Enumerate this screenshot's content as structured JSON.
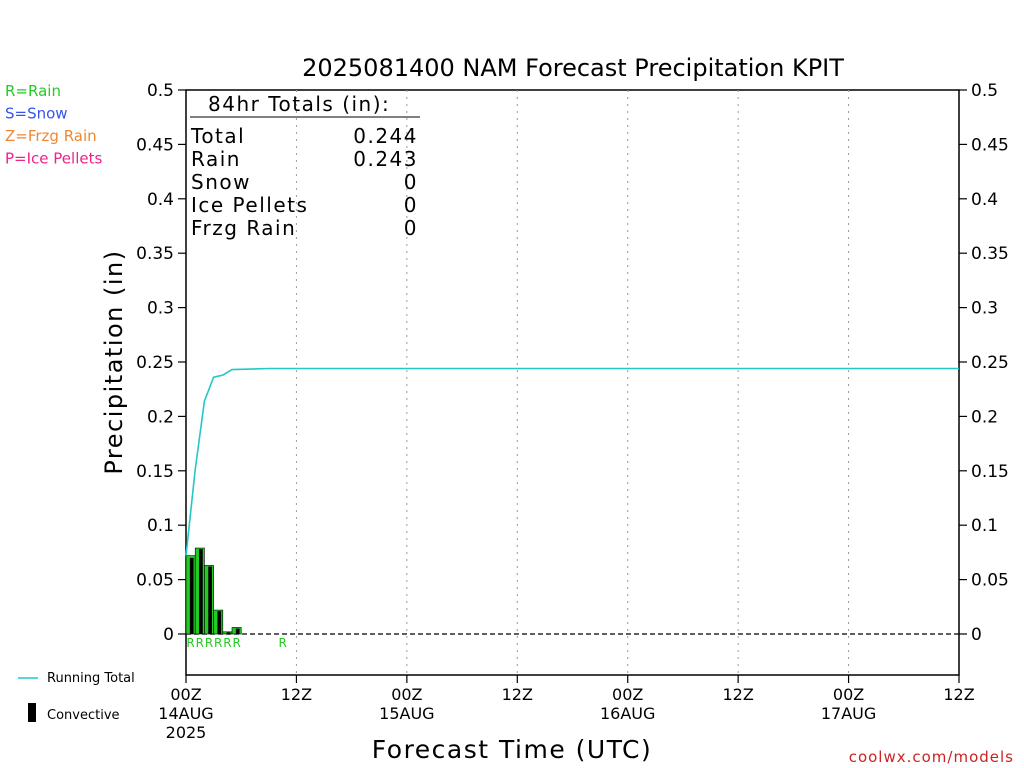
{
  "title": "2025081400 NAM Forecast Precipitation KPIT",
  "watermark": "coolwx.com/models",
  "ylabel": "Precipitation (in)",
  "xlabel": "Forecast Time (UTC)",
  "type_legend": [
    {
      "label": "R=Rain",
      "color": "#22cc22"
    },
    {
      "label": "S=Snow",
      "color": "#3355ee"
    },
    {
      "label": "Z=Frzg Rain",
      "color": "#ee8833"
    },
    {
      "label": "P=Ice Pellets",
      "color": "#ee2288"
    }
  ],
  "series_legend": {
    "running_total": "Running Total",
    "convective": "Convective"
  },
  "totals": {
    "header": "84hr Totals (in):",
    "rows": [
      {
        "label": "Total",
        "value": "0.244"
      },
      {
        "label": "Rain",
        "value": "0.243"
      },
      {
        "label": "Snow",
        "value": "0"
      },
      {
        "label": "Ice Pellets",
        "value": "0"
      },
      {
        "label": "Frzg Rain",
        "value": "0"
      }
    ]
  },
  "colors": {
    "running_total": "#22c8c8",
    "bar": "#22cc22",
    "convective": "#000000",
    "rain_marker": "#22cc22",
    "watermark": "#cc2222"
  },
  "chart_data": {
    "type": "bar",
    "xlim": [
      0,
      84
    ],
    "ylim": [
      0,
      0.5
    ],
    "yticks": [
      {
        "v": 0,
        "label": "0"
      },
      {
        "v": 0.05,
        "label": "0.05"
      },
      {
        "v": 0.1,
        "label": "0.1"
      },
      {
        "v": 0.15,
        "label": "0.15"
      },
      {
        "v": 0.2,
        "label": "0.2"
      },
      {
        "v": 0.25,
        "label": "0.25"
      },
      {
        "v": 0.3,
        "label": "0.3"
      },
      {
        "v": 0.35,
        "label": "0.35"
      },
      {
        "v": 0.4,
        "label": "0.4"
      },
      {
        "v": 0.45,
        "label": "0.45"
      },
      {
        "v": 0.5,
        "label": "0.5"
      }
    ],
    "xticks": [
      {
        "h": 0,
        "lines": [
          "00Z",
          "14AUG",
          "2025"
        ]
      },
      {
        "h": 12,
        "lines": [
          "12Z"
        ]
      },
      {
        "h": 24,
        "lines": [
          "00Z",
          "15AUG"
        ]
      },
      {
        "h": 36,
        "lines": [
          "12Z"
        ]
      },
      {
        "h": 48,
        "lines": [
          "00Z",
          "16AUG"
        ]
      },
      {
        "h": 60,
        "lines": [
          "12Z"
        ]
      },
      {
        "h": 72,
        "lines": [
          "00Z",
          "17AUG"
        ]
      },
      {
        "h": 84,
        "lines": [
          "12Z"
        ]
      }
    ],
    "hourly_bars": [
      {
        "h": 1,
        "total": 0.072,
        "convective": 0.07
      },
      {
        "h": 2,
        "total": 0.079,
        "convective": 0.078
      },
      {
        "h": 3,
        "total": 0.063,
        "convective": 0.062
      },
      {
        "h": 4,
        "total": 0.022,
        "convective": 0.021
      },
      {
        "h": 5,
        "total": 0.002,
        "convective": 0.0015
      },
      {
        "h": 6,
        "total": 0.006,
        "convective": 0.005
      }
    ],
    "running_total": [
      {
        "h": 0,
        "v": 0.072
      },
      {
        "h": 1,
        "v": 0.151
      },
      {
        "h": 2,
        "v": 0.214
      },
      {
        "h": 3,
        "v": 0.236
      },
      {
        "h": 4,
        "v": 0.238
      },
      {
        "h": 5,
        "v": 0.243
      },
      {
        "h": 9,
        "v": 0.244
      },
      {
        "h": 84,
        "v": 0.244
      }
    ],
    "type_markers": [
      {
        "h": 1,
        "label": "R"
      },
      {
        "h": 2,
        "label": "R"
      },
      {
        "h": 3,
        "label": "R"
      },
      {
        "h": 4,
        "label": "R"
      },
      {
        "h": 5,
        "label": "R"
      },
      {
        "h": 6,
        "label": "R"
      },
      {
        "h": 11,
        "label": "R"
      }
    ]
  }
}
